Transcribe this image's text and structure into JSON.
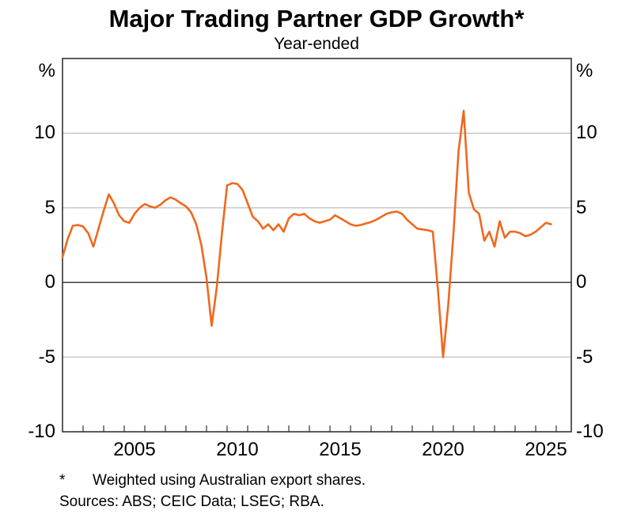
{
  "title": "Major Trading Partner GDP Growth*",
  "subtitle": "Year-ended",
  "units": {
    "left": "%",
    "right": "%"
  },
  "footnote": {
    "marker": "*",
    "text": "Weighted using Australian export shares.",
    "sources": "Sources: ABS; CEIC Data; LSEG; RBA."
  },
  "colors": {
    "line": "#F0681E",
    "grid": "#b9b9b9",
    "zero_line": "#4a4a4a",
    "frame": "#333333",
    "text": "#000000"
  },
  "chart_data": {
    "type": "line",
    "title": "Major Trading Partner GDP Growth*",
    "subtitle": "Year-ended",
    "ylabel": "%",
    "x_domain": [
      2002,
      2026.73
    ],
    "ylim": [
      -10,
      15
    ],
    "grid": "horizontal",
    "x_tick_years_start": 2002,
    "x_tick_years_end": 2026,
    "x_labels": [
      {
        "year": 2005,
        "label": "2005"
      },
      {
        "year": 2010,
        "label": "2010"
      },
      {
        "year": 2015,
        "label": "2015"
      },
      {
        "year": 2020,
        "label": "2020"
      },
      {
        "year": 2025,
        "label": "2025"
      }
    ],
    "y_ticks": [
      {
        "value": 10,
        "label": "10"
      },
      {
        "value": 5,
        "label": "5"
      },
      {
        "value": 0,
        "label": "0"
      },
      {
        "value": -5,
        "label": "-5"
      },
      {
        "value": -10,
        "label": "-10"
      }
    ],
    "series": [
      {
        "name": "Major trading partner GDP growth, year-ended (%), quarterly",
        "color": "#F0681E",
        "points": [
          [
            2002.0,
            1.7
          ],
          [
            2002.25,
            2.9
          ],
          [
            2002.5,
            3.8
          ],
          [
            2002.75,
            3.85
          ],
          [
            2003.0,
            3.75
          ],
          [
            2003.25,
            3.3
          ],
          [
            2003.5,
            2.4
          ],
          [
            2003.75,
            3.6
          ],
          [
            2004.0,
            4.8
          ],
          [
            2004.25,
            5.9
          ],
          [
            2004.5,
            5.3
          ],
          [
            2004.75,
            4.5
          ],
          [
            2005.0,
            4.1
          ],
          [
            2005.25,
            4.0
          ],
          [
            2005.5,
            4.6
          ],
          [
            2005.75,
            5.0
          ],
          [
            2006.0,
            5.25
          ],
          [
            2006.25,
            5.1
          ],
          [
            2006.5,
            5.0
          ],
          [
            2006.75,
            5.2
          ],
          [
            2007.0,
            5.5
          ],
          [
            2007.25,
            5.7
          ],
          [
            2007.5,
            5.55
          ],
          [
            2007.75,
            5.3
          ],
          [
            2008.0,
            5.1
          ],
          [
            2008.25,
            4.7
          ],
          [
            2008.5,
            3.9
          ],
          [
            2008.75,
            2.5
          ],
          [
            2009.0,
            0.3
          ],
          [
            2009.25,
            -2.9
          ],
          [
            2009.5,
            -0.3
          ],
          [
            2009.75,
            3.3
          ],
          [
            2010.0,
            6.5
          ],
          [
            2010.25,
            6.65
          ],
          [
            2010.5,
            6.6
          ],
          [
            2010.75,
            6.2
          ],
          [
            2011.0,
            5.3
          ],
          [
            2011.25,
            4.4
          ],
          [
            2011.5,
            4.1
          ],
          [
            2011.75,
            3.6
          ],
          [
            2012.0,
            3.9
          ],
          [
            2012.25,
            3.5
          ],
          [
            2012.5,
            3.9
          ],
          [
            2012.75,
            3.4
          ],
          [
            2013.0,
            4.3
          ],
          [
            2013.25,
            4.6
          ],
          [
            2013.5,
            4.5
          ],
          [
            2013.75,
            4.6
          ],
          [
            2014.0,
            4.3
          ],
          [
            2014.25,
            4.1
          ],
          [
            2014.5,
            4.0
          ],
          [
            2014.75,
            4.1
          ],
          [
            2015.0,
            4.2
          ],
          [
            2015.25,
            4.5
          ],
          [
            2015.5,
            4.3
          ],
          [
            2015.75,
            4.1
          ],
          [
            2016.0,
            3.9
          ],
          [
            2016.25,
            3.8
          ],
          [
            2016.5,
            3.85
          ],
          [
            2016.75,
            3.95
          ],
          [
            2017.0,
            4.05
          ],
          [
            2017.25,
            4.2
          ],
          [
            2017.5,
            4.4
          ],
          [
            2017.75,
            4.6
          ],
          [
            2018.0,
            4.7
          ],
          [
            2018.25,
            4.75
          ],
          [
            2018.5,
            4.6
          ],
          [
            2018.75,
            4.2
          ],
          [
            2019.0,
            3.9
          ],
          [
            2019.25,
            3.6
          ],
          [
            2019.5,
            3.55
          ],
          [
            2019.75,
            3.5
          ],
          [
            2020.0,
            3.4
          ],
          [
            2020.25,
            -0.5
          ],
          [
            2020.5,
            -5.0
          ],
          [
            2020.75,
            -1.5
          ],
          [
            2021.0,
            3.2
          ],
          [
            2021.25,
            8.8
          ],
          [
            2021.5,
            11.5
          ],
          [
            2021.75,
            6.0
          ],
          [
            2022.0,
            4.9
          ],
          [
            2022.25,
            4.6
          ],
          [
            2022.5,
            2.8
          ],
          [
            2022.75,
            3.4
          ],
          [
            2023.0,
            2.4
          ],
          [
            2023.25,
            4.1
          ],
          [
            2023.5,
            3.0
          ],
          [
            2023.75,
            3.4
          ],
          [
            2024.0,
            3.4
          ],
          [
            2024.25,
            3.3
          ],
          [
            2024.5,
            3.1
          ],
          [
            2024.75,
            3.2
          ],
          [
            2025.0,
            3.4
          ],
          [
            2025.25,
            3.7
          ],
          [
            2025.5,
            4.0
          ],
          [
            2025.75,
            3.9
          ]
        ]
      }
    ]
  }
}
